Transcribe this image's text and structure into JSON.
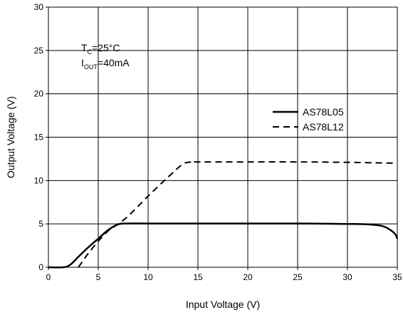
{
  "chart_data": {
    "type": "line",
    "title": "",
    "xlabel": "Input Voltage (V)",
    "ylabel": "Output Voltage (V)",
    "xlim": [
      0,
      35
    ],
    "ylim": [
      0,
      30
    ],
    "x_ticks": [
      0,
      5,
      10,
      15,
      20,
      25,
      30,
      35
    ],
    "y_ticks": [
      0,
      5,
      10,
      15,
      20,
      25,
      30
    ],
    "grid": true,
    "legend_position": "right",
    "conditions": {
      "tc_base": "T",
      "tc_sub": "C",
      "tc_value": "=25°C",
      "iout_base": "I",
      "iout_sub": "OUT",
      "iout_value": "=40mA"
    },
    "series": [
      {
        "name": "AS78L05",
        "style": "solid",
        "color": "#000000",
        "points": [
          [
            0,
            0
          ],
          [
            1.5,
            0
          ],
          [
            2.2,
            0.3
          ],
          [
            3,
            1.2
          ],
          [
            4,
            2.3
          ],
          [
            5,
            3.3
          ],
          [
            6,
            4.3
          ],
          [
            7,
            4.95
          ],
          [
            8,
            5.05
          ],
          [
            10,
            5.05
          ],
          [
            15,
            5.05
          ],
          [
            20,
            5.05
          ],
          [
            25,
            5.05
          ],
          [
            30,
            5.0
          ],
          [
            32,
            4.95
          ],
          [
            33.5,
            4.75
          ],
          [
            34.3,
            4.3
          ],
          [
            34.8,
            3.8
          ],
          [
            35,
            3.3
          ]
        ]
      },
      {
        "name": "AS78L12",
        "style": "dashed",
        "color": "#000000",
        "points": [
          [
            3,
            0
          ],
          [
            3.5,
            0.8
          ],
          [
            4,
            1.6
          ],
          [
            5,
            3.0
          ],
          [
            6,
            4.2
          ],
          [
            7,
            5.0
          ],
          [
            8,
            5.9
          ],
          [
            10,
            8.2
          ],
          [
            12,
            10.4
          ],
          [
            13.5,
            11.9
          ],
          [
            14.5,
            12.15
          ],
          [
            15,
            12.15
          ],
          [
            20,
            12.15
          ],
          [
            25,
            12.15
          ],
          [
            30,
            12.1
          ],
          [
            35,
            12.0
          ]
        ]
      }
    ]
  }
}
